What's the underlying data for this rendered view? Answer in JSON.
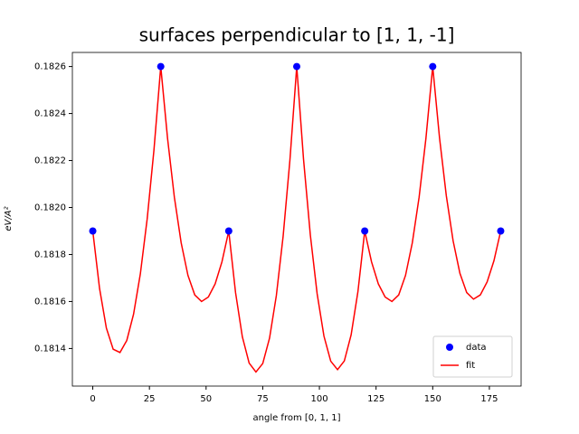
{
  "chart_data": {
    "type": "scatter",
    "title": "surfaces perpendicular to [1, 1, -1]",
    "xlabel": "angle from [0, 1, 1]",
    "ylabel": "eV/A²",
    "xlim": [
      -9,
      189
    ],
    "ylim": [
      0.18124,
      0.18266
    ],
    "xticks": [
      0,
      25,
      50,
      75,
      100,
      125,
      150,
      175
    ],
    "yticks": [
      0.1814,
      0.1816,
      0.1818,
      {
        "value": 0.182,
        "label": "0.1820"
      },
      0.1822,
      0.1824,
      0.1826
    ],
    "legend": "lower right",
    "series": [
      {
        "name": "data",
        "type": "scatter",
        "color": "#0000ff",
        "x": [
          0,
          30,
          60,
          90,
          120,
          150,
          180
        ],
        "values": [
          0.1819,
          0.1826,
          0.1819,
          0.1826,
          0.1819,
          0.1826,
          0.1819
        ]
      },
      {
        "name": "fit",
        "type": "line",
        "color": "#ff0000",
        "x": [
          0,
          3,
          6,
          9,
          12,
          15,
          18,
          21,
          24,
          27,
          30,
          33,
          36,
          39,
          42,
          45,
          48,
          51,
          54,
          57,
          60,
          63,
          66,
          69,
          72,
          75,
          78,
          81,
          84,
          87,
          90,
          93,
          96,
          99,
          102,
          105,
          108,
          111,
          114,
          117,
          120,
          123,
          126,
          129,
          132,
          135,
          138,
          141,
          144,
          147,
          150,
          153,
          156,
          159,
          162,
          165,
          168,
          171,
          174,
          177,
          180
        ],
        "values": [
          0.1819,
          0.181655,
          0.181487,
          0.181397,
          0.181383,
          0.181434,
          0.181546,
          0.181718,
          0.181951,
          0.182245,
          0.1826,
          0.182294,
          0.182044,
          0.18185,
          0.181711,
          0.181628,
          0.1816,
          0.181619,
          0.181675,
          0.181769,
          0.1819,
          0.181638,
          0.18145,
          0.181338,
          0.1813,
          0.181336,
          0.181444,
          0.181625,
          0.181878,
          0.182203,
          0.1826,
          0.182205,
          0.181883,
          0.181633,
          0.181453,
          0.181346,
          0.18131,
          0.181347,
          0.181458,
          0.181642,
          0.1819,
          0.181769,
          0.181675,
          0.181619,
          0.1816,
          0.181628,
          0.181711,
          0.18185,
          0.182044,
          0.182294,
          0.1826,
          0.182297,
          0.18205,
          0.181858,
          0.18172,
          0.181638,
          0.18161,
          0.181628,
          0.181683,
          0.181773,
          0.1819
        ]
      }
    ]
  }
}
